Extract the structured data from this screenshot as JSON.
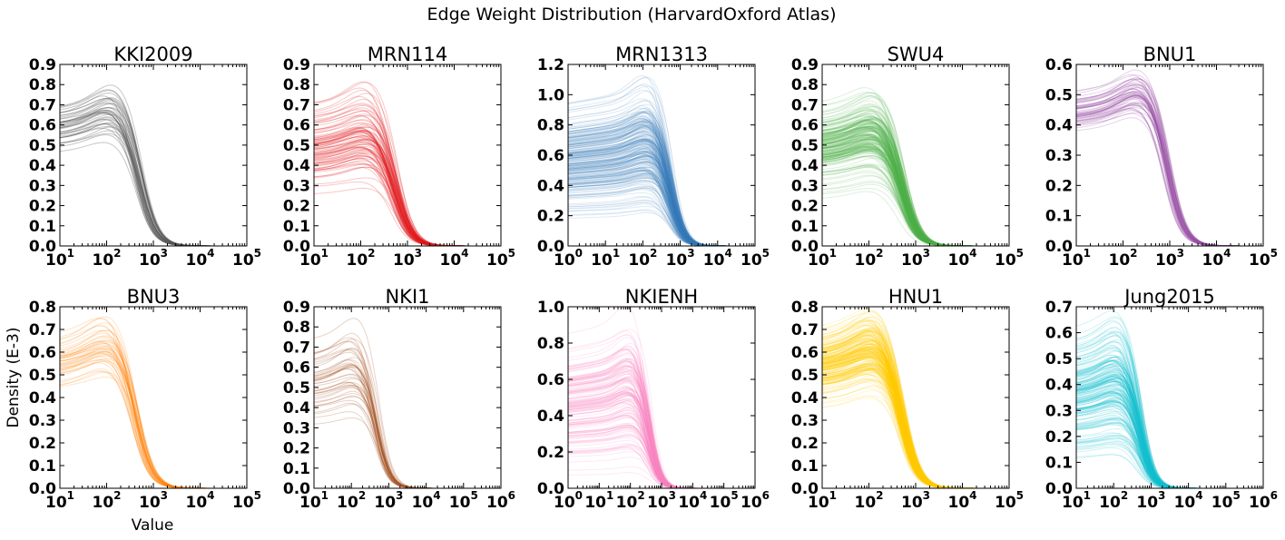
{
  "figure": {
    "title": "Edge Weight Distribution (HarvardOxford Atlas)",
    "ylabel": "Density (E-3)",
    "xlabel": "Value"
  },
  "chart_data": [
    {
      "type": "line",
      "title": "KKI2009",
      "color": "#555555",
      "xscale": "log",
      "xlim": [
        10,
        100000
      ],
      "ylim": [
        0,
        0.9
      ],
      "yticks": [
        "0.0",
        "0.1",
        "0.2",
        "0.3",
        "0.4",
        "0.5",
        "0.6",
        "0.7",
        "0.8",
        "0.9"
      ],
      "xtick_exponents": [
        "1",
        "2",
        "3",
        "4",
        "5"
      ],
      "curve": {
        "knee": 500,
        "n": 42,
        "low": 0.47,
        "high": 0.81,
        "alpha": 0.18
      }
    },
    {
      "type": "line",
      "title": "MRN114",
      "color": "#e41a1c",
      "xscale": "log",
      "xlim": [
        10,
        100000
      ],
      "ylim": [
        0,
        0.9
      ],
      "yticks": [
        "0.0",
        "0.1",
        "0.2",
        "0.3",
        "0.4",
        "0.5",
        "0.6",
        "0.7",
        "0.8",
        "0.9"
      ],
      "xtick_exponents": [
        "1",
        "2",
        "3",
        "4",
        "5"
      ],
      "curve": {
        "knee": 560,
        "n": 90,
        "low": 0.22,
        "high": 0.8,
        "alpha": 0.12
      }
    },
    {
      "type": "line",
      "title": "MRN1313",
      "color": "#377eb8",
      "xscale": "log",
      "xlim": [
        1,
        100000
      ],
      "ylim": [
        0,
        1.2
      ],
      "yticks": [
        "0.0",
        "0.2",
        "0.4",
        "0.6",
        "0.8",
        "1.0",
        "1.2"
      ],
      "xtick_exponents": [
        "0",
        "1",
        "2",
        "3",
        "4",
        "5"
      ],
      "curve": {
        "knee": 560,
        "n": 420,
        "low": 0.18,
        "high": 1.07,
        "alpha": 0.07
      }
    },
    {
      "type": "line",
      "title": "SWU4",
      "color": "#4daf4a",
      "xscale": "log",
      "xlim": [
        10,
        100000
      ],
      "ylim": [
        0,
        0.9
      ],
      "yticks": [
        "0.0",
        "0.1",
        "0.2",
        "0.3",
        "0.4",
        "0.5",
        "0.6",
        "0.7",
        "0.8",
        "0.9"
      ],
      "xtick_exponents": [
        "1",
        "2",
        "3",
        "4",
        "5"
      ],
      "curve": {
        "knee": 520,
        "n": 200,
        "low": 0.25,
        "high": 0.8,
        "alpha": 0.09
      }
    },
    {
      "type": "line",
      "title": "BNU1",
      "color": "#984ea3",
      "xscale": "log",
      "xlim": [
        10,
        100000
      ],
      "ylim": [
        0,
        0.6
      ],
      "yticks": [
        "0.0",
        "0.1",
        "0.2",
        "0.3",
        "0.4",
        "0.5",
        "0.6"
      ],
      "xtick_exponents": [
        "1",
        "2",
        "3",
        "4",
        "5"
      ],
      "curve": {
        "knee": 900,
        "n": 60,
        "low": 0.4,
        "high": 0.57,
        "alpha": 0.12
      }
    },
    {
      "type": "line",
      "title": "BNU3",
      "color": "#ff7f00",
      "xscale": "log",
      "xlim": [
        10,
        100000
      ],
      "ylim": [
        0,
        0.8
      ],
      "yticks": [
        "0.0",
        "0.1",
        "0.2",
        "0.3",
        "0.4",
        "0.5",
        "0.6",
        "0.7",
        "0.8"
      ],
      "xtick_exponents": [
        "1",
        "2",
        "3",
        "4",
        "5"
      ],
      "curve": {
        "knee": 430,
        "n": 48,
        "low": 0.4,
        "high": 0.77,
        "alpha": 0.1
      }
    },
    {
      "type": "line",
      "title": "NKI1",
      "color": "#a65628",
      "xscale": "log",
      "xlim": [
        10,
        1000000
      ],
      "ylim": [
        0,
        0.9
      ],
      "yticks": [
        "0.0",
        "0.1",
        "0.2",
        "0.3",
        "0.4",
        "0.5",
        "0.6",
        "0.7",
        "0.8",
        "0.9"
      ],
      "xtick_exponents": [
        "1",
        "2",
        "3",
        "4",
        "5",
        "6"
      ],
      "curve": {
        "knee": 480,
        "n": 45,
        "low": 0.28,
        "high": 0.82,
        "alpha": 0.13
      }
    },
    {
      "type": "line",
      "title": "NKIENH",
      "color": "#f781bf",
      "xscale": "log",
      "xlim": [
        1,
        1000000
      ],
      "ylim": [
        0,
        1.0
      ],
      "yticks": [
        "0.0",
        "0.2",
        "0.4",
        "0.6",
        "0.8",
        "1.0"
      ],
      "xtick_exponents": [
        "0",
        "1",
        "2",
        "3",
        "4",
        "5",
        "6"
      ],
      "curve": {
        "knee": 420,
        "n": 160,
        "low": 0.06,
        "high": 0.95,
        "alpha": 0.08
      }
    },
    {
      "type": "line",
      "title": "HNU1",
      "color": "#ffcc00",
      "xscale": "log",
      "xlim": [
        10,
        100000
      ],
      "ylim": [
        0,
        0.8
      ],
      "yticks": [
        "0.0",
        "0.1",
        "0.2",
        "0.3",
        "0.4",
        "0.5",
        "0.6",
        "0.7",
        "0.8"
      ],
      "xtick_exponents": [
        "1",
        "2",
        "3",
        "4",
        "5"
      ],
      "curve": {
        "knee": 520,
        "n": 300,
        "low": 0.38,
        "high": 0.78,
        "alpha": 0.08
      }
    },
    {
      "type": "line",
      "title": "Jung2015",
      "color": "#17becf",
      "xscale": "log",
      "xlim": [
        10,
        1000000
      ],
      "ylim": [
        0,
        0.7
      ],
      "yticks": [
        "0.0",
        "0.1",
        "0.2",
        "0.3",
        "0.4",
        "0.5",
        "0.6",
        "0.7"
      ],
      "xtick_exponents": [
        "1",
        "2",
        "3",
        "4",
        "5",
        "6"
      ],
      "curve": {
        "knee": 520,
        "n": 200,
        "low": 0.1,
        "high": 0.67,
        "alpha": 0.09
      }
    }
  ]
}
